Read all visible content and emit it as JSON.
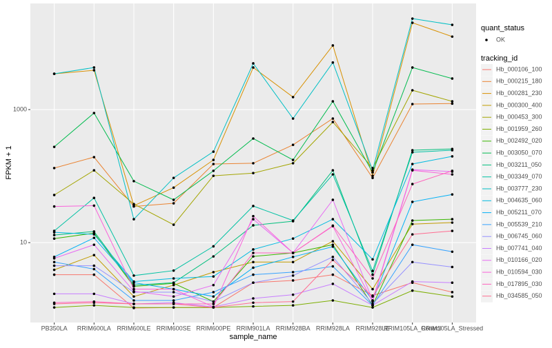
{
  "chart_data": {
    "type": "line",
    "x_label": "sample_name",
    "y_label": "FPKM + 1",
    "log_y": true,
    "grid": true,
    "categories": [
      "PB350LA",
      "RRIM600LA",
      "RRIM600LE",
      "RRIM600SE",
      "RRIM600PE",
      "RRIM901LA",
      "RRIM928BA",
      "RRIM928LA",
      "RRIM928LE",
      "RRIM105LA_Control",
      "RRIM105LA_Stressed"
    ],
    "ylim": [
      0.63,
      39400
    ],
    "yticks": [
      10,
      1000
    ],
    "point_legend": {
      "title": "quant_status",
      "levels": [
        "OK"
      ]
    },
    "legend_title": "tracking_id",
    "series": [
      {
        "name": "Hb_000106_100",
        "color": "#F8766D",
        "values": [
          3.3,
          3.3,
          1.04,
          1.06,
          1.06,
          2.5,
          2.7,
          3.3,
          1.6,
          2.5,
          1.8
        ]
      },
      {
        "name": "Hb_000215_180",
        "color": "#EA8331",
        "values": [
          132,
          193,
          35,
          39,
          152,
          156,
          295,
          733,
          94,
          1210,
          1230
        ]
      },
      {
        "name": "Hb_000281_230",
        "color": "#D89000",
        "values": [
          3450,
          3900,
          36,
          67,
          175,
          4290,
          1540,
          9200,
          101,
          20200,
          12500
        ]
      },
      {
        "name": "Hb_000300_400",
        "color": "#C09B00",
        "values": [
          3.9,
          6.5,
          1.55,
          2.3,
          3.6,
          5.1,
          5.1,
          10.5,
          2.0,
          19,
          20
        ]
      },
      {
        "name": "Hb_000453_300",
        "color": "#A3A500",
        "values": [
          52,
          122,
          38,
          18.6,
          101,
          111,
          156,
          650,
          132,
          1950,
          1330
        ]
      },
      {
        "name": "Hb_001959_260",
        "color": "#7CAE00",
        "values": [
          1.06,
          1.14,
          1.06,
          1.06,
          1.06,
          1.1,
          1.14,
          1.35,
          1.06,
          1.9,
          1.55
        ]
      },
      {
        "name": "Hb_002492_020",
        "color": "#39B600",
        "values": [
          11.5,
          13.9,
          2.2,
          2.45,
          1.3,
          6.2,
          7.0,
          9.3,
          1.14,
          21.5,
          22.5
        ]
      },
      {
        "name": "Hb_003050_070",
        "color": "#00BB4E",
        "values": [
          275,
          887,
          84,
          44,
          120,
          367,
          175,
          1330,
          114,
          4290,
          2930
        ]
      },
      {
        "name": "Hb_003211_050",
        "color": "#00BF7D",
        "values": [
          13,
          14.7,
          2.3,
          2.5,
          6.2,
          18.2,
          21,
          122,
          3.3,
          245,
          256
        ]
      },
      {
        "name": "Hb_003349_070",
        "color": "#00C1A3",
        "values": [
          15,
          47,
          3.2,
          3.8,
          8.8,
          35.5,
          21.5,
          106,
          3.75,
          228,
          245
        ]
      },
      {
        "name": "Hb_003777_230",
        "color": "#00BFC4",
        "values": [
          3450,
          4290,
          22.5,
          94,
          233,
          4950,
          733,
          5100,
          122,
          23300,
          18800
        ]
      },
      {
        "name": "Hb_004635_060",
        "color": "#00BAE0",
        "values": [
          14.3,
          13.3,
          2.6,
          2.9,
          3.1,
          7.9,
          11.5,
          22.5,
          5.6,
          152,
          198
        ]
      },
      {
        "name": "Hb_005211_070",
        "color": "#00B0F6",
        "values": [
          6.1,
          11.8,
          2.5,
          2.0,
          1.55,
          4.2,
          6.1,
          8.7,
          1.35,
          41,
          53
        ]
      },
      {
        "name": "Hb_005539_210",
        "color": "#35A2FF",
        "values": [
          5.1,
          4.0,
          1.35,
          1.35,
          1.8,
          3.3,
          3.6,
          4.4,
          1.14,
          9.3,
          7.3
        ]
      },
      {
        "name": "Hb_006745_060",
        "color": "#9590FF",
        "values": [
          4.5,
          4.5,
          1.8,
          1.8,
          1.3,
          2.5,
          3.2,
          6.1,
          1.2,
          5.1,
          4.3
        ]
      },
      {
        "name": "Hb_007741_040",
        "color": "#C77CFF",
        "values": [
          1.7,
          1.7,
          1.2,
          1.25,
          1.08,
          1.45,
          1.65,
          2.4,
          1.14,
          2.6,
          2.5
        ]
      },
      {
        "name": "Hb_010166_020",
        "color": "#E76BF3",
        "values": [
          5.8,
          9.3,
          1.85,
          1.55,
          2.3,
          22.5,
          7.0,
          44,
          1.35,
          125,
          117
        ]
      },
      {
        "name": "Hb_010594_030",
        "color": "#FA62DB",
        "values": [
          35,
          36,
          2.0,
          2.0,
          1.08,
          25,
          7.0,
          17.7,
          1.3,
          122,
          106
        ]
      },
      {
        "name": "Hb_017895_030",
        "color": "#FF62BC",
        "values": [
          1.25,
          1.3,
          1.2,
          1.2,
          1.2,
          7.0,
          7.0,
          18,
          2.9,
          76,
          120
        ]
      },
      {
        "name": "Hb_034585_050",
        "color": "#FF6C91",
        "values": [
          1.2,
          1.25,
          1.2,
          1.2,
          1.06,
          1.25,
          1.3,
          5.5,
          1.55,
          13.3,
          15
        ]
      }
    ]
  }
}
